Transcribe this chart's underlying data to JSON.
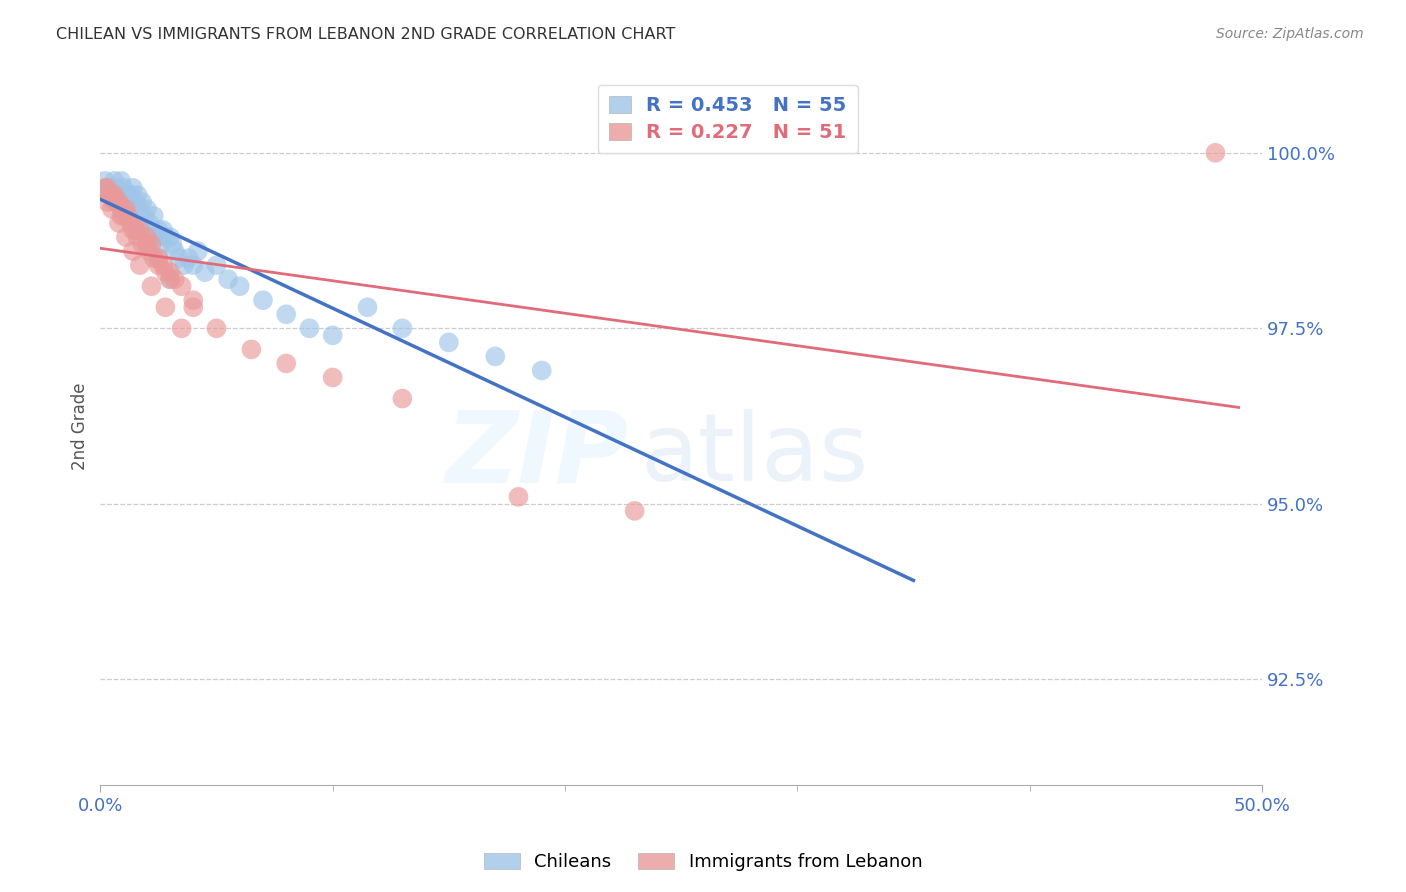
{
  "title": "CHILEAN VS IMMIGRANTS FROM LEBANON 2ND GRADE CORRELATION CHART",
  "source": "Source: ZipAtlas.com",
  "ylabel": "2nd Grade",
  "legend_chileans": "Chileans",
  "legend_lebanon": "Immigrants from Lebanon",
  "R_chileans": 0.453,
  "N_chileans": 55,
  "R_lebanon": 0.227,
  "N_lebanon": 51,
  "blue_color": "#9fc5e8",
  "pink_color": "#ea9999",
  "blue_line_color": "#4472c4",
  "pink_line_color": "#e06c7a",
  "axis_label_color": "#4472c4",
  "yticks": [
    92.5,
    95.0,
    97.5,
    100.0
  ],
  "xlim": [
    0,
    50
  ],
  "ylim": [
    91.0,
    101.2
  ],
  "chileans_x": [
    0.2,
    0.4,
    0.5,
    0.6,
    0.7,
    0.8,
    0.9,
    1.0,
    1.1,
    1.2,
    1.3,
    1.4,
    1.5,
    1.6,
    1.7,
    1.8,
    1.9,
    2.0,
    2.1,
    2.2,
    2.3,
    2.4,
    2.5,
    2.6,
    2.7,
    2.8,
    3.0,
    3.1,
    3.2,
    3.4,
    3.6,
    3.8,
    4.0,
    4.2,
    4.5,
    5.0,
    5.5,
    6.0,
    7.0,
    8.0,
    9.0,
    10.0,
    11.5,
    13.0,
    15.0,
    17.0,
    19.0,
    0.3,
    0.5,
    0.7,
    1.0,
    1.5,
    2.0,
    2.5,
    3.0
  ],
  "chileans_y": [
    99.6,
    99.5,
    99.5,
    99.6,
    99.5,
    99.4,
    99.6,
    99.5,
    99.3,
    99.4,
    99.4,
    99.5,
    99.3,
    99.4,
    99.2,
    99.3,
    99.1,
    99.2,
    99.0,
    98.9,
    99.1,
    98.8,
    98.9,
    98.7,
    98.9,
    98.8,
    98.8,
    98.7,
    98.6,
    98.5,
    98.4,
    98.5,
    98.4,
    98.6,
    98.3,
    98.4,
    98.2,
    98.1,
    97.9,
    97.7,
    97.5,
    97.4,
    97.8,
    97.5,
    97.3,
    97.1,
    96.9,
    99.5,
    99.4,
    99.3,
    99.2,
    99.0,
    98.8,
    98.5,
    98.2
  ],
  "lebanon_x": [
    0.2,
    0.3,
    0.5,
    0.6,
    0.7,
    0.8,
    0.9,
    1.0,
    1.1,
    1.2,
    1.3,
    1.5,
    1.6,
    1.7,
    1.8,
    2.0,
    2.1,
    2.2,
    2.3,
    2.5,
    2.7,
    2.8,
    3.0,
    3.2,
    3.5,
    4.0,
    0.4,
    0.6,
    0.9,
    1.4,
    2.0,
    2.5,
    3.0,
    4.0,
    5.0,
    6.5,
    8.0,
    10.0,
    13.0,
    18.0,
    23.0,
    0.3,
    0.5,
    0.8,
    1.1,
    1.4,
    1.7,
    2.2,
    2.8,
    3.5,
    48.0
  ],
  "lebanon_y": [
    99.5,
    99.5,
    99.4,
    99.4,
    99.3,
    99.3,
    99.2,
    99.1,
    99.2,
    99.1,
    99.0,
    98.9,
    98.8,
    98.9,
    98.7,
    98.8,
    98.6,
    98.7,
    98.5,
    98.5,
    98.4,
    98.3,
    98.3,
    98.2,
    98.1,
    97.9,
    99.4,
    99.3,
    99.1,
    98.9,
    98.7,
    98.4,
    98.2,
    97.8,
    97.5,
    97.2,
    97.0,
    96.8,
    96.5,
    95.1,
    94.9,
    99.3,
    99.2,
    99.0,
    98.8,
    98.6,
    98.4,
    98.1,
    97.8,
    97.5,
    100.0
  ]
}
